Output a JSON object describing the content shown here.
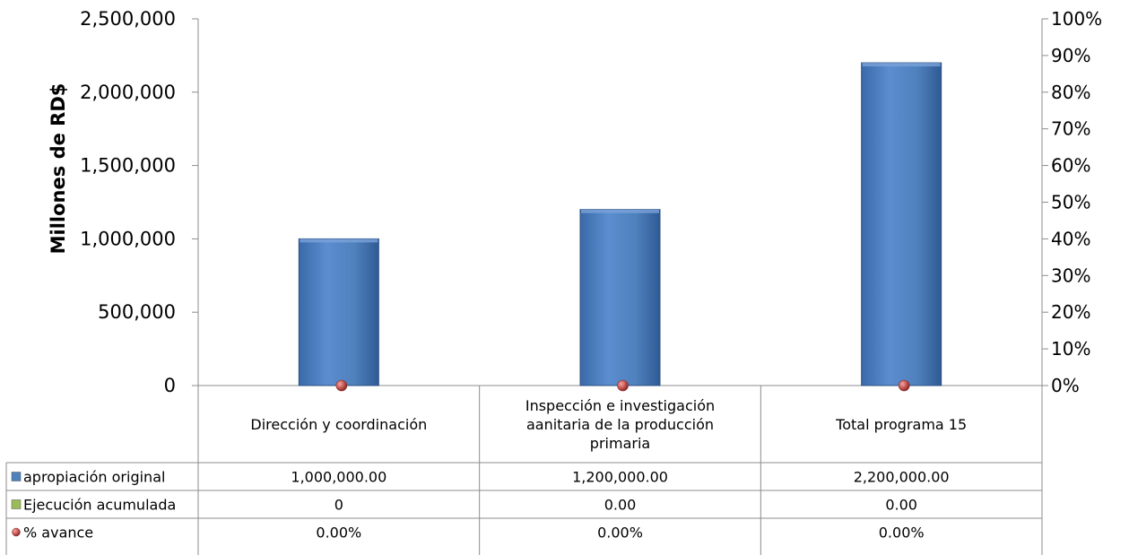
{
  "chart_data": {
    "type": "bar",
    "categories": [
      "Dirección y coordinación",
      "Inspección e investigación aanitaria de la producción primaria",
      "Total programa 15"
    ],
    "category_lines": [
      [
        "Dirección y coordinación"
      ],
      [
        "Inspección e investigación",
        "aanitaria de la producción",
        "primaria"
      ],
      [
        "Total programa 15"
      ]
    ],
    "series": [
      {
        "name": "apropiación original",
        "values": [
          1000000,
          1200000,
          2200000
        ],
        "table_values": [
          "1,000,000.00",
          "1,200,000.00",
          "2,200,000.00"
        ],
        "color": "#4f81bd",
        "marker": "square",
        "axis": "primary"
      },
      {
        "name": "Ejecución acumulada",
        "values": [
          0,
          0,
          0
        ],
        "table_values": [
          "0",
          "0.00",
          "0.00"
        ],
        "color": "#9bbb59",
        "marker": "square",
        "axis": "primary"
      },
      {
        "name": "% avance",
        "values": [
          0,
          0,
          0
        ],
        "table_values": [
          "0.00%",
          "0.00%",
          "0.00%"
        ],
        "color": "#c0504d",
        "marker": "circle",
        "axis": "secondary"
      }
    ],
    "ylabel": "Millones de RD$",
    "ylim": [
      0,
      2500000
    ],
    "yticks": [
      "0",
      "500,000",
      "1,000,000",
      "1,500,000",
      "2,000,000",
      "2,500,000"
    ],
    "y2lim": [
      0,
      100
    ],
    "y2ticks": [
      "0%",
      "10%",
      "20%",
      "30%",
      "40%",
      "50%",
      "60%",
      "70%",
      "80%",
      "90%",
      "100%"
    ],
    "grid": false,
    "legend": "data-table"
  }
}
